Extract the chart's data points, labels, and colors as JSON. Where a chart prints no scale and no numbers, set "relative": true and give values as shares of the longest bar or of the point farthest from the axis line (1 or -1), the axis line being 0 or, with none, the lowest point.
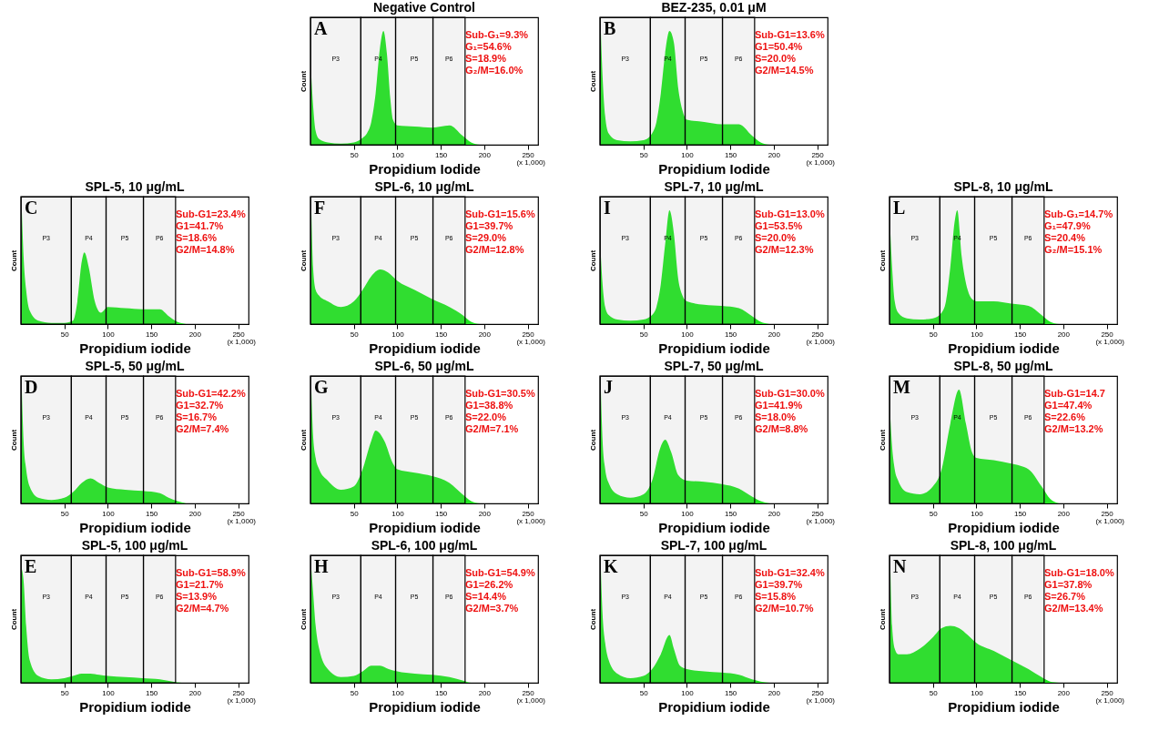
{
  "chart_data": [
    {
      "type": "area",
      "title": "Negative Control",
      "xlabel": "Propidium Iodide",
      "ylabel": "Count",
      "relative": true,
      "tick_labels": "x",
      "color": "#22e622",
      "xlim": [
        0,
        262
      ],
      "xticks": [
        50,
        100,
        150,
        200,
        250
      ],
      "x": [
        1,
        3,
        6,
        10,
        20,
        35,
        50,
        60,
        65,
        70,
        75,
        80,
        84,
        88,
        92,
        95,
        100,
        120,
        140,
        160,
        175,
        185,
        195
      ],
      "values": [
        0.6,
        0.35,
        0.12,
        0.05,
        0.02,
        0.01,
        0.02,
        0.06,
        0.1,
        0.2,
        0.45,
        0.85,
        1,
        0.8,
        0.4,
        0.22,
        0.17,
        0.16,
        0.15,
        0.17,
        0.08,
        0.02,
        0
      ],
      "bands": [
        {
          "axis": "x",
          "from": 0,
          "to": 58,
          "label": "P3"
        },
        {
          "axis": "x",
          "from": 58,
          "to": 98,
          "label": "P4"
        },
        {
          "axis": "x",
          "from": 98,
          "to": 141,
          "label": "P5"
        },
        {
          "axis": "x",
          "from": 141,
          "to": 178,
          "label": "P6"
        }
      ],
      "annotations": [
        "A",
        "Sub-G₁=9.3%",
        "G₁=54.6%",
        "S=18.9%",
        "G₂/M=16.0%",
        "(x 1,000)"
      ]
    },
    {
      "type": "area",
      "title": "BEZ-235, 0.01 μM",
      "xlabel": "Propidium Iodide",
      "ylabel": "Count",
      "relative": true,
      "tick_labels": "x",
      "color": "#22e622",
      "xlim": [
        0,
        262
      ],
      "xticks": [
        50,
        100,
        150,
        200,
        250
      ],
      "x": [
        1,
        3,
        6,
        10,
        20,
        35,
        50,
        60,
        65,
        70,
        75,
        80,
        85,
        90,
        95,
        100,
        120,
        140,
        160,
        175,
        185,
        195
      ],
      "values": [
        1,
        0.6,
        0.25,
        0.1,
        0.04,
        0.03,
        0.04,
        0.1,
        0.2,
        0.45,
        0.8,
        1,
        0.9,
        0.5,
        0.3,
        0.22,
        0.2,
        0.18,
        0.18,
        0.08,
        0.02,
        0
      ],
      "bands": [
        {
          "axis": "x",
          "from": 0,
          "to": 58,
          "label": "P3"
        },
        {
          "axis": "x",
          "from": 58,
          "to": 98,
          "label": "P4"
        },
        {
          "axis": "x",
          "from": 98,
          "to": 141,
          "label": "P5"
        },
        {
          "axis": "x",
          "from": 141,
          "to": 178,
          "label": "P6"
        }
      ],
      "annotations": [
        "B",
        "Sub-G1=13.6%",
        "G1=50.4%",
        "S=20.0%",
        "G2/M=14.5%",
        "(x 1,000)"
      ]
    },
    {
      "type": "area",
      "title": "SPL-5, 10 μg/mL",
      "xlabel": "Propidium iodide",
      "ylabel": "Count",
      "relative": true,
      "tick_labels": "x",
      "color": "#22e622",
      "xlim": [
        0,
        262
      ],
      "xticks": [
        50,
        100,
        150,
        200,
        250
      ],
      "x": [
        1,
        3,
        6,
        10,
        20,
        35,
        50,
        60,
        65,
        70,
        73,
        78,
        85,
        92,
        100,
        120,
        140,
        160,
        170,
        180,
        190
      ],
      "values": [
        1,
        0.6,
        0.3,
        0.12,
        0.03,
        0.01,
        0.01,
        0.03,
        0.2,
        0.55,
        0.63,
        0.5,
        0.2,
        0.1,
        0.15,
        0.14,
        0.13,
        0.13,
        0.07,
        0.02,
        0
      ],
      "bands": [
        {
          "axis": "x",
          "from": 0,
          "to": 58,
          "label": "P3"
        },
        {
          "axis": "x",
          "from": 58,
          "to": 98,
          "label": "P4"
        },
        {
          "axis": "x",
          "from": 98,
          "to": 141,
          "label": "P5"
        },
        {
          "axis": "x",
          "from": 141,
          "to": 178,
          "label": "P6"
        }
      ],
      "annotations": [
        "C",
        "Sub-G1=23.4%",
        "G1=41.7%",
        "S=18.6%",
        "G2/M=14.8%",
        "(x 1,000)"
      ]
    },
    {
      "type": "area",
      "title": "SPL-6, 10 μg/mL",
      "xlabel": "Propidium iodide",
      "ylabel": "Count",
      "relative": true,
      "tick_labels": "x",
      "color": "#22e622",
      "xlim": [
        0,
        262
      ],
      "xticks": [
        50,
        100,
        150,
        200,
        250
      ],
      "x": [
        1,
        3,
        6,
        10,
        20,
        35,
        50,
        60,
        70,
        80,
        90,
        100,
        120,
        140,
        160,
        175,
        185,
        195
      ],
      "values": [
        1,
        0.5,
        0.3,
        0.25,
        0.2,
        0.15,
        0.2,
        0.3,
        0.42,
        0.48,
        0.45,
        0.38,
        0.3,
        0.22,
        0.15,
        0.08,
        0.02,
        0
      ],
      "bands": [
        {
          "axis": "x",
          "from": 0,
          "to": 58,
          "label": "P3"
        },
        {
          "axis": "x",
          "from": 58,
          "to": 98,
          "label": "P4"
        },
        {
          "axis": "x",
          "from": 98,
          "to": 141,
          "label": "P5"
        },
        {
          "axis": "x",
          "from": 141,
          "to": 178,
          "label": "P6"
        }
      ],
      "annotations": [
        "F",
        "Sub-G1=15.6%",
        "G1=39.7%",
        "S=29.0%",
        "G2/M=12.8%",
        "(x 1,000)"
      ]
    },
    {
      "type": "area",
      "title": "SPL-7, 10 μg/mL",
      "xlabel": "Propidium iodide",
      "ylabel": "Count",
      "relative": true,
      "tick_labels": "x",
      "color": "#22e622",
      "xlim": [
        0,
        262
      ],
      "xticks": [
        50,
        100,
        150,
        200,
        250
      ],
      "x": [
        1,
        3,
        6,
        10,
        20,
        35,
        50,
        60,
        65,
        70,
        75,
        80,
        85,
        90,
        95,
        100,
        120,
        140,
        160,
        175,
        185,
        195
      ],
      "values": [
        0.6,
        0.35,
        0.15,
        0.08,
        0.04,
        0.03,
        0.04,
        0.08,
        0.15,
        0.35,
        0.7,
        1,
        0.8,
        0.4,
        0.25,
        0.2,
        0.17,
        0.16,
        0.14,
        0.07,
        0.02,
        0
      ],
      "bands": [
        {
          "axis": "x",
          "from": 0,
          "to": 58,
          "label": "P3"
        },
        {
          "axis": "x",
          "from": 58,
          "to": 98,
          "label": "P4"
        },
        {
          "axis": "x",
          "from": 98,
          "to": 141,
          "label": "P5"
        },
        {
          "axis": "x",
          "from": 141,
          "to": 178,
          "label": "P6"
        }
      ],
      "annotations": [
        "I",
        "Sub-G1=13.0%",
        "G1=53.5%",
        "S=20.0%",
        "G2/M=12.3%",
        "(x 1,000)"
      ]
    },
    {
      "type": "area",
      "title": "SPL-8, 10 μg/mL",
      "xlabel": "Propidium iodide",
      "ylabel": "Count",
      "relative": true,
      "tick_labels": "x",
      "color": "#22e622",
      "xlim": [
        0,
        262
      ],
      "xticks": [
        50,
        100,
        150,
        200,
        250
      ],
      "x": [
        1,
        3,
        6,
        10,
        20,
        35,
        50,
        60,
        65,
        70,
        75,
        78,
        83,
        90,
        95,
        100,
        120,
        140,
        160,
        175,
        185,
        195
      ],
      "values": [
        0.8,
        0.5,
        0.2,
        0.1,
        0.05,
        0.04,
        0.05,
        0.1,
        0.2,
        0.5,
        0.9,
        1,
        0.6,
        0.3,
        0.22,
        0.2,
        0.2,
        0.18,
        0.16,
        0.08,
        0.02,
        0
      ],
      "bands": [
        {
          "axis": "x",
          "from": 0,
          "to": 58,
          "label": "P3"
        },
        {
          "axis": "x",
          "from": 58,
          "to": 98,
          "label": "P4"
        },
        {
          "axis": "x",
          "from": 98,
          "to": 141,
          "label": "P5"
        },
        {
          "axis": "x",
          "from": 141,
          "to": 178,
          "label": "P6"
        }
      ],
      "annotations": [
        "L",
        "Sub-G₁=14.7%",
        "G₁=47.9%",
        "S=20.4%",
        "G₂/M=15.1%",
        "(x 1,000)"
      ]
    },
    {
      "type": "area",
      "title": "SPL-5, 50 μg/mL",
      "xlabel": "Propidium iodide",
      "ylabel": "Count",
      "relative": true,
      "tick_labels": "x",
      "color": "#22e622",
      "xlim": [
        0,
        262
      ],
      "xticks": [
        50,
        100,
        150,
        200,
        250
      ],
      "x": [
        1,
        3,
        6,
        10,
        20,
        35,
        50,
        60,
        70,
        80,
        90,
        100,
        120,
        140,
        160,
        170,
        180,
        190
      ],
      "values": [
        1,
        0.55,
        0.3,
        0.15,
        0.05,
        0.03,
        0.05,
        0.1,
        0.18,
        0.22,
        0.18,
        0.14,
        0.12,
        0.11,
        0.09,
        0.05,
        0.02,
        0
      ],
      "bands": [
        {
          "axis": "x",
          "from": 0,
          "to": 58,
          "label": "P3"
        },
        {
          "axis": "x",
          "from": 58,
          "to": 98,
          "label": "P4"
        },
        {
          "axis": "x",
          "from": 98,
          "to": 141,
          "label": "P5"
        },
        {
          "axis": "x",
          "from": 141,
          "to": 178,
          "label": "P6"
        }
      ],
      "annotations": [
        "D",
        "Sub-G1=42.2%",
        "G1=32.7%",
        "S=16.7%",
        "G2/M=7.4%",
        "(x 1,000)"
      ]
    },
    {
      "type": "area",
      "title": "SPL-6, 50 μg/mL",
      "xlabel": "Propidium iodide",
      "ylabel": "Count",
      "relative": true,
      "tick_labels": "x",
      "color": "#22e622",
      "xlim": [
        0,
        262
      ],
      "xticks": [
        50,
        100,
        150,
        200,
        250
      ],
      "x": [
        1,
        3,
        6,
        10,
        20,
        35,
        50,
        60,
        70,
        75,
        85,
        95,
        100,
        120,
        140,
        160,
        175,
        185,
        195
      ],
      "values": [
        1,
        0.6,
        0.4,
        0.3,
        0.2,
        0.12,
        0.15,
        0.3,
        0.55,
        0.64,
        0.55,
        0.35,
        0.3,
        0.27,
        0.24,
        0.18,
        0.08,
        0.02,
        0
      ],
      "bands": [
        {
          "axis": "x",
          "from": 0,
          "to": 58,
          "label": "P3"
        },
        {
          "axis": "x",
          "from": 58,
          "to": 98,
          "label": "P4"
        },
        {
          "axis": "x",
          "from": 98,
          "to": 141,
          "label": "P5"
        },
        {
          "axis": "x",
          "from": 141,
          "to": 178,
          "label": "P6"
        }
      ],
      "annotations": [
        "G",
        "Sub-G1=30.5%",
        "G1=38.8%",
        "S=22.0%",
        "G2/M=7.1%",
        "(x 1,000)"
      ]
    },
    {
      "type": "area",
      "title": "SPL-7, 50 μg/mL",
      "xlabel": "Propidium iodide",
      "ylabel": "Count",
      "relative": true,
      "tick_labels": "x",
      "color": "#22e622",
      "xlim": [
        0,
        262
      ],
      "xticks": [
        50,
        100,
        150,
        200,
        250
      ],
      "x": [
        1,
        3,
        6,
        10,
        20,
        35,
        50,
        60,
        70,
        75,
        82,
        90,
        100,
        120,
        140,
        160,
        175,
        185,
        195
      ],
      "values": [
        1,
        0.55,
        0.3,
        0.18,
        0.08,
        0.05,
        0.08,
        0.2,
        0.5,
        0.56,
        0.45,
        0.25,
        0.2,
        0.19,
        0.17,
        0.13,
        0.06,
        0.02,
        0
      ],
      "bands": [
        {
          "axis": "x",
          "from": 0,
          "to": 58,
          "label": "P3"
        },
        {
          "axis": "x",
          "from": 58,
          "to": 98,
          "label": "P4"
        },
        {
          "axis": "x",
          "from": 98,
          "to": 141,
          "label": "P5"
        },
        {
          "axis": "x",
          "from": 141,
          "to": 178,
          "label": "P6"
        }
      ],
      "annotations": [
        "J",
        "Sub-G1=30.0%",
        "G1=41.9%",
        "S=18.0%",
        "G2/M=8.8%",
        "(x 1,000)"
      ]
    },
    {
      "type": "area",
      "title": "SPL-8, 50 μg/mL",
      "xlabel": "Propidium iodide",
      "ylabel": "Count",
      "relative": true,
      "tick_labels": "x",
      "color": "#22e622",
      "xlim": [
        0,
        262
      ],
      "xticks": [
        50,
        100,
        150,
        200,
        250
      ],
      "x": [
        1,
        3,
        6,
        10,
        20,
        35,
        50,
        60,
        70,
        80,
        88,
        95,
        100,
        120,
        140,
        160,
        175,
        185,
        195
      ],
      "values": [
        0.75,
        0.5,
        0.3,
        0.2,
        0.1,
        0.08,
        0.15,
        0.3,
        0.7,
        1,
        0.7,
        0.45,
        0.4,
        0.38,
        0.35,
        0.3,
        0.15,
        0.04,
        0
      ],
      "bands": [
        {
          "axis": "x",
          "from": 0,
          "to": 58,
          "label": "P3"
        },
        {
          "axis": "x",
          "from": 58,
          "to": 98,
          "label": "P4"
        },
        {
          "axis": "x",
          "from": 98,
          "to": 141,
          "label": "P5"
        },
        {
          "axis": "x",
          "from": 141,
          "to": 178,
          "label": "P6"
        }
      ],
      "annotations": [
        "M",
        "Sub-G1=14.7",
        "G1=47.4%",
        "S=22.6%",
        "G2/M=13.2%",
        "(x 1,000)"
      ]
    },
    {
      "type": "area",
      "title": "SPL-5, 100 μg/mL",
      "xlabel": "Propidium iodide",
      "ylabel": "Count",
      "relative": true,
      "tick_labels": "x",
      "color": "#22e622",
      "xlim": [
        0,
        262
      ],
      "xticks": [
        50,
        100,
        150,
        200,
        250
      ],
      "x": [
        1,
        3,
        6,
        10,
        20,
        35,
        50,
        60,
        70,
        80,
        90,
        100,
        120,
        140,
        160,
        175,
        185,
        195
      ],
      "values": [
        1,
        0.9,
        0.5,
        0.2,
        0.06,
        0.03,
        0.04,
        0.06,
        0.08,
        0.08,
        0.07,
        0.06,
        0.05,
        0.04,
        0.03,
        0.01,
        0,
        0
      ],
      "bands": [
        {
          "axis": "x",
          "from": 0,
          "to": 58,
          "label": "P3"
        },
        {
          "axis": "x",
          "from": 58,
          "to": 98,
          "label": "P4"
        },
        {
          "axis": "x",
          "from": 98,
          "to": 141,
          "label": "P5"
        },
        {
          "axis": "x",
          "from": 141,
          "to": 178,
          "label": "P6"
        }
      ],
      "annotations": [
        "E",
        "Sub-G1=58.9%",
        "G1=21.7%",
        "S=13.9%",
        "G2/M=4.7%",
        "(x 1,000)"
      ]
    },
    {
      "type": "area",
      "title": "SPL-6, 100 μg/mL",
      "xlabel": "Propidium iodide",
      "ylabel": "Count",
      "relative": true,
      "tick_labels": "x",
      "color": "#22e622",
      "xlim": [
        0,
        262
      ],
      "xticks": [
        50,
        100,
        150,
        200,
        250
      ],
      "x": [
        1,
        3,
        6,
        10,
        20,
        35,
        50,
        60,
        70,
        80,
        90,
        100,
        120,
        140,
        160,
        175,
        185,
        195
      ],
      "values": [
        1,
        0.8,
        0.5,
        0.3,
        0.12,
        0.05,
        0.06,
        0.1,
        0.15,
        0.15,
        0.12,
        0.1,
        0.08,
        0.07,
        0.05,
        0.02,
        0,
        0
      ],
      "bands": [
        {
          "axis": "x",
          "from": 0,
          "to": 58,
          "label": "P3"
        },
        {
          "axis": "x",
          "from": 58,
          "to": 98,
          "label": "P4"
        },
        {
          "axis": "x",
          "from": 98,
          "to": 141,
          "label": "P5"
        },
        {
          "axis": "x",
          "from": 141,
          "to": 178,
          "label": "P6"
        }
      ],
      "annotations": [
        "H",
        "Sub-G1=54.9%",
        "G1=26.2%",
        "S=14.4%",
        "G2/M=3.7%",
        "(x 1,000)"
      ]
    },
    {
      "type": "area",
      "title": "SPL-7, 100 μg/mL",
      "xlabel": "Propidium iodide",
      "ylabel": "Count",
      "relative": true,
      "tick_labels": "x",
      "color": "#22e622",
      "xlim": [
        0,
        262
      ],
      "xticks": [
        50,
        100,
        150,
        200,
        250
      ],
      "x": [
        1,
        3,
        6,
        10,
        20,
        35,
        50,
        60,
        70,
        80,
        85,
        92,
        100,
        120,
        140,
        160,
        175,
        185,
        195
      ],
      "values": [
        1,
        0.6,
        0.35,
        0.2,
        0.08,
        0.04,
        0.06,
        0.12,
        0.25,
        0.42,
        0.3,
        0.15,
        0.12,
        0.1,
        0.09,
        0.07,
        0.03,
        0.01,
        0
      ],
      "bands": [
        {
          "axis": "x",
          "from": 0,
          "to": 58,
          "label": "P3"
        },
        {
          "axis": "x",
          "from": 58,
          "to": 98,
          "label": "P4"
        },
        {
          "axis": "x",
          "from": 98,
          "to": 141,
          "label": "P5"
        },
        {
          "axis": "x",
          "from": 141,
          "to": 178,
          "label": "P6"
        }
      ],
      "annotations": [
        "K",
        "Sub-G1=32.4%",
        "G1=39.7%",
        "S=15.8%",
        "G2/M=10.7%",
        "(x 1,000)"
      ]
    },
    {
      "type": "area",
      "title": "SPL-8, 100 μg/mL",
      "xlabel": "Propidium iodide",
      "ylabel": "Count",
      "relative": true,
      "tick_labels": "x",
      "color": "#22e622",
      "xlim": [
        0,
        262
      ],
      "xticks": [
        50,
        100,
        150,
        200,
        250
      ],
      "x": [
        1,
        3,
        6,
        10,
        20,
        35,
        50,
        60,
        70,
        80,
        90,
        100,
        120,
        140,
        160,
        175,
        185,
        195
      ],
      "values": [
        1,
        0.5,
        0.3,
        0.25,
        0.25,
        0.3,
        0.4,
        0.48,
        0.5,
        0.48,
        0.42,
        0.35,
        0.28,
        0.2,
        0.12,
        0.05,
        0.01,
        0
      ],
      "bands": [
        {
          "axis": "x",
          "from": 0,
          "to": 58,
          "label": "P3"
        },
        {
          "axis": "x",
          "from": 58,
          "to": 98,
          "label": "P4"
        },
        {
          "axis": "x",
          "from": 98,
          "to": 141,
          "label": "P5"
        },
        {
          "axis": "x",
          "from": 141,
          "to": 178,
          "label": "P6"
        }
      ],
      "annotations": [
        "N",
        "Sub-G1=18.0%",
        "G1=37.8%",
        "S=26.7%",
        "G2/M=13.4%",
        "(x 1,000)"
      ]
    }
  ]
}
